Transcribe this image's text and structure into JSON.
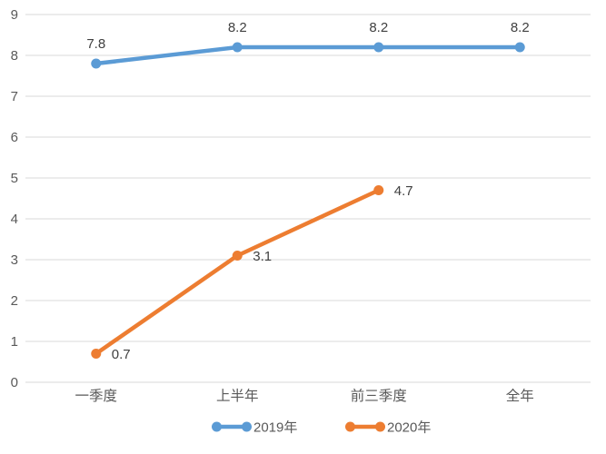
{
  "chart_data": {
    "type": "line",
    "title": "",
    "xlabel": "",
    "ylabel": "",
    "categories": [
      "一季度",
      "上半年",
      "前三季度",
      "全年"
    ],
    "series": [
      {
        "name": "2019年",
        "color": "#5B9BD5",
        "values": [
          7.8,
          8.2,
          8.2,
          8.2
        ],
        "data_labels": [
          "7.8",
          "8.2",
          "8.2",
          "8.2"
        ],
        "label_position": "above"
      },
      {
        "name": "2020年",
        "color": "#ED7D31",
        "values": [
          0.7,
          3.1,
          4.7,
          null
        ],
        "data_labels": [
          "0.7",
          "3.1",
          "4.7",
          null
        ],
        "label_position": "right"
      }
    ],
    "ylim": [
      0,
      9
    ],
    "ytick_step": 1,
    "ytick_labels": [
      "0",
      "1",
      "2",
      "3",
      "4",
      "5",
      "6",
      "7",
      "8",
      "9"
    ],
    "grid": true,
    "legend_position": "bottom"
  },
  "colors": {
    "background": "#FFFFFF",
    "gridline": "#D9D9D9",
    "axis_text": "#595959",
    "data_label_text": "#404040",
    "legend_text": "#595959",
    "series_2019": "#5B9BD5",
    "series_2020": "#ED7D31"
  }
}
